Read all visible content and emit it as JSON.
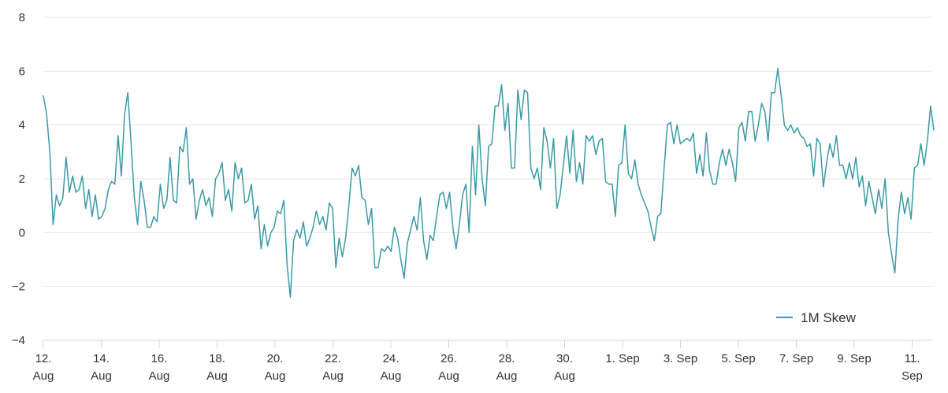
{
  "chart_data": {
    "type": "line",
    "title": "",
    "xlabel": "",
    "ylabel": "",
    "ylim": [
      -4,
      8
    ],
    "yticks": [
      "8",
      "6",
      "4",
      "2",
      "0",
      "−2",
      "−4"
    ],
    "grid": true,
    "legend_position": "bottom-right",
    "line_color": "#3a9aa6",
    "x_ticks": [
      {
        "line1": "12.",
        "line2": "Aug"
      },
      {
        "line1": "14.",
        "line2": "Aug"
      },
      {
        "line1": "16.",
        "line2": "Aug"
      },
      {
        "line1": "18.",
        "line2": "Aug"
      },
      {
        "line1": "20.",
        "line2": "Aug"
      },
      {
        "line1": "22.",
        "line2": "Aug"
      },
      {
        "line1": "24.",
        "line2": "Aug"
      },
      {
        "line1": "26.",
        "line2": "Aug"
      },
      {
        "line1": "28.",
        "line2": "Aug"
      },
      {
        "line1": "30.",
        "line2": "Aug"
      },
      {
        "line1": "1. Sep",
        "line2": ""
      },
      {
        "line1": "3. Sep",
        "line2": ""
      },
      {
        "line1": "5. Sep",
        "line2": ""
      },
      {
        "line1": "7. Sep",
        "line2": ""
      },
      {
        "line1": "9. Sep",
        "line2": ""
      },
      {
        "line1": "11.",
        "line2": "Sep"
      }
    ],
    "series": [
      {
        "name": "1M Skew",
        "x_start": "2021-08-12",
        "x_end": "2021-09-11T18:00",
        "values": [
          5.1,
          4.4,
          3.0,
          0.3,
          1.4,
          1.0,
          1.3,
          2.8,
          1.5,
          2.1,
          1.5,
          1.6,
          2.1,
          0.9,
          1.6,
          0.6,
          1.4,
          0.5,
          0.6,
          0.9,
          1.6,
          1.9,
          1.8,
          3.6,
          2.1,
          4.4,
          5.2,
          3.3,
          1.3,
          0.3,
          1.9,
          1.2,
          0.2,
          0.2,
          0.6,
          0.4,
          1.8,
          0.9,
          1.2,
          2.8,
          1.2,
          1.1,
          3.2,
          3.0,
          3.9,
          1.8,
          2.0,
          0.5,
          1.2,
          1.6,
          1.0,
          1.3,
          0.6,
          2.0,
          2.2,
          2.6,
          1.2,
          1.6,
          0.8,
          2.6,
          2.0,
          2.4,
          1.1,
          1.2,
          1.8,
          0.5,
          1.0,
          -0.6,
          0.3,
          -0.5,
          0.0,
          0.2,
          0.8,
          0.7,
          1.2,
          -1.2,
          -2.4,
          -0.3,
          0.1,
          -0.2,
          0.4,
          -0.5,
          -0.2,
          0.2,
          0.8,
          0.3,
          0.6,
          0.1,
          1.1,
          0.9,
          -1.3,
          -0.2,
          -0.9,
          -0.2,
          1.0,
          2.4,
          2.1,
          2.5,
          1.3,
          1.2,
          0.3,
          0.9,
          -1.3,
          -1.3,
          -0.6,
          -0.7,
          -0.5,
          -0.7,
          0.2,
          -0.2,
          -1.0,
          -1.7,
          -0.4,
          0.1,
          0.6,
          0.1,
          1.3,
          -0.3,
          -1.0,
          -0.1,
          -0.3,
          0.6,
          1.4,
          1.5,
          0.9,
          1.5,
          0.2,
          -0.6,
          0.3,
          1.4,
          1.8,
          0.0,
          3.2,
          1.4,
          4.0,
          2.0,
          1.0,
          3.2,
          3.3,
          4.7,
          4.7,
          5.5,
          3.8,
          4.8,
          2.4,
          2.4,
          5.3,
          4.2,
          5.3,
          5.2,
          2.4,
          2.0,
          2.4,
          1.6,
          3.9,
          3.4,
          2.4,
          3.5,
          0.9,
          1.4,
          2.5,
          3.6,
          2.2,
          3.8,
          1.9,
          2.6,
          1.8,
          3.6,
          3.4,
          3.6,
          2.9,
          3.4,
          3.5,
          1.9,
          1.8,
          1.8,
          0.6,
          2.5,
          2.6,
          4.0,
          2.2,
          2.0,
          2.7,
          1.8,
          1.4,
          1.1,
          0.8,
          0.2,
          -0.3,
          0.6,
          0.7,
          2.4,
          4.0,
          4.1,
          3.3,
          4.0,
          3.3,
          3.4,
          3.5,
          3.4,
          3.7,
          2.2,
          2.9,
          2.1,
          3.7,
          2.3,
          1.8,
          1.8,
          2.6,
          3.1,
          2.5,
          3.1,
          2.6,
          1.9,
          3.9,
          4.1,
          3.4,
          4.5,
          4.5,
          3.4,
          4.0,
          4.8,
          4.5,
          3.4,
          5.2,
          5.2,
          6.1,
          5.1,
          4.0,
          3.8,
          4.0,
          3.7,
          3.9,
          3.6,
          3.5,
          3.2,
          3.3,
          2.1,
          3.5,
          3.3,
          1.7,
          2.6,
          3.3,
          2.8,
          3.6,
          2.5,
          2.5,
          2.0,
          2.6,
          2.0,
          2.8,
          1.7,
          2.1,
          1.0,
          1.9,
          1.3,
          0.7,
          1.6,
          0.9,
          2.0,
          0.0,
          -0.8,
          -1.5,
          0.5,
          1.5,
          0.7,
          1.3,
          0.5,
          2.4,
          2.5,
          3.3,
          2.5,
          3.4,
          4.7,
          3.8
        ]
      }
    ]
  }
}
